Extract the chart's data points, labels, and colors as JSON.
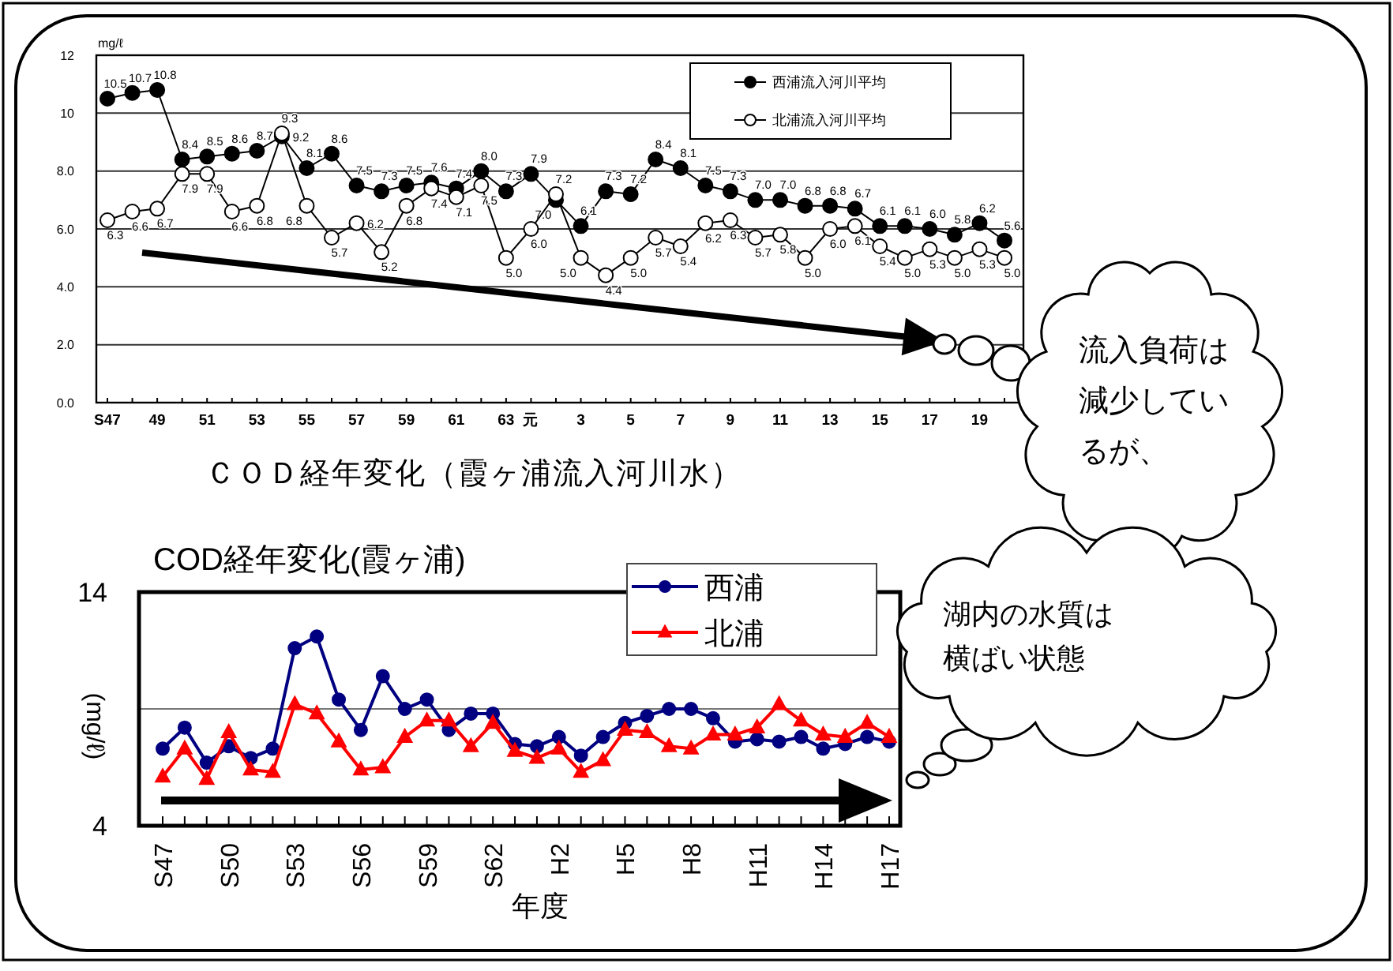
{
  "chart_data": [
    {
      "type": "line",
      "title": "ＣＯＤ経年変化（霞ヶ浦流入河川水）",
      "ylabel": "mg/ℓ",
      "categories": [
        "S47",
        null,
        "49",
        null,
        "51",
        null,
        "53",
        null,
        "55",
        null,
        "57",
        null,
        "59",
        null,
        "61",
        null,
        "63",
        "元",
        null,
        "3",
        null,
        "5",
        null,
        "7",
        null,
        "9",
        null,
        "11",
        null,
        "13",
        null,
        "15",
        null,
        "17",
        null,
        "19",
        null
      ],
      "series": [
        {
          "name": "西浦流入河川平均",
          "color": "#000000",
          "marker": "circle",
          "values": [
            10.5,
            10.7,
            10.8,
            8.4,
            8.5,
            8.6,
            8.7,
            9.2,
            8.1,
            8.6,
            7.5,
            7.3,
            7.5,
            7.6,
            7.4,
            8.0,
            7.3,
            7.9,
            7.0,
            6.1,
            7.3,
            7.2,
            8.4,
            8.1,
            7.5,
            7.3,
            7.0,
            7.0,
            6.8,
            6.8,
            6.7,
            6.1,
            6.1,
            6.0,
            5.8,
            6.2,
            5.6
          ],
          "value_labels": [
            "10.5",
            "10.7",
            "10.8",
            "8.4",
            "8.5",
            "8.6",
            "8.7",
            "9.2",
            "8.1",
            "8.6",
            "7.5",
            "7.3",
            "7.5",
            "7.6",
            "7.4",
            "8.0",
            "7.3",
            "7.9",
            "7.0",
            "6.1",
            "7.3",
            "7.2",
            "8.4",
            "8.1",
            "7.5",
            "7.3",
            "7.0",
            "7.0",
            "6.8",
            "6.8",
            "6.7",
            "6.1",
            "6.1",
            "6.0",
            "5.8",
            "6.2",
            "5.6"
          ]
        },
        {
          "name": "北浦流入河川平均",
          "color": "#000000",
          "marker": "circle",
          "values": [
            6.3,
            6.6,
            6.7,
            7.9,
            7.9,
            6.6,
            6.8,
            9.3,
            6.8,
            5.7,
            6.2,
            5.2,
            6.8,
            7.4,
            7.1,
            7.5,
            5.0,
            6.0,
            7.2,
            5.0,
            4.4,
            5.0,
            5.7,
            5.4,
            6.2,
            6.3,
            5.7,
            5.8,
            5.0,
            6.0,
            6.1,
            5.4,
            5.0,
            5.3,
            5.0,
            5.3,
            5.0
          ],
          "value_labels": [
            "6.3",
            "6.6",
            "6.7",
            "7.9",
            "7.9",
            "6.6",
            "6.8",
            "9.3",
            "6.8",
            "5.7",
            "6.2",
            "5.2",
            "6.8",
            "7.4",
            "7.1",
            "7.5",
            "5.0",
            "6.0",
            "7.2",
            "5.0",
            "4.4",
            "5.0",
            "5.7",
            "5.4",
            "6.2",
            "6.3",
            "5.7",
            "5.8",
            "5.0",
            "6.0",
            "6.1",
            "5.4",
            "5.0",
            "5.3",
            "5.0",
            "5.3",
            "5.0"
          ]
        }
      ],
      "ylim": [
        0,
        12
      ],
      "yticks": [
        {
          "value": 0,
          "label": "0.0"
        },
        {
          "value": 2,
          "label": "2.0"
        },
        {
          "value": 4,
          "label": "4.0"
        },
        {
          "value": 6,
          "label": "6.0"
        },
        {
          "value": 8,
          "label": "8.0"
        },
        10,
        12
      ],
      "grid": "y",
      "legend": "top right",
      "annotations": [
        "流入負荷は減少しているが、"
      ]
    },
    {
      "type": "line",
      "title": "COD経年変化(霞ヶ浦)",
      "xlabel": "年度",
      "ylabel": "(mg/ℓ)",
      "categories": [
        "S47",
        null,
        null,
        "S50",
        null,
        null,
        "S53",
        null,
        null,
        "S56",
        null,
        null,
        "S59",
        null,
        null,
        "S62",
        null,
        null,
        "H2",
        null,
        null,
        "H5",
        null,
        null,
        "H8",
        null,
        null,
        "H11",
        null,
        null,
        "H14",
        null,
        null,
        "H17"
      ],
      "series": [
        {
          "name": "西浦",
          "color": "#000080",
          "marker": "circle",
          "values": [
            7.3,
            8.2,
            6.7,
            7.4,
            6.9,
            7.3,
            11.6,
            12.1,
            9.4,
            8.1,
            10.4,
            9.0,
            9.4,
            8.1,
            8.8,
            8.8,
            7.5,
            7.4,
            7.8,
            7.0,
            7.8,
            8.4,
            8.7,
            9.0,
            9.0,
            8.6,
            7.6,
            7.7,
            7.6,
            7.8,
            7.3,
            7.5,
            7.8,
            7.6
          ]
        },
        {
          "name": "北浦",
          "color": "#ff0000",
          "marker": "triangle",
          "values": [
            6.1,
            7.3,
            6.0,
            8.0,
            6.4,
            6.3,
            9.2,
            8.8,
            7.6,
            6.4,
            6.5,
            7.8,
            8.5,
            8.5,
            7.4,
            8.4,
            7.2,
            6.9,
            7.3,
            6.3,
            6.8,
            8.1,
            8.0,
            7.4,
            7.3,
            7.9,
            7.9,
            8.2,
            9.2,
            8.5,
            7.9,
            7.8,
            8.4,
            7.8
          ]
        }
      ],
      "ylim": [
        4,
        14
      ],
      "yticks": [
        4,
        {
          "value": 9,
          "label": null
        },
        14
      ],
      "grid": "y",
      "legend": "top right",
      "annotations": [
        "湖内の水質は横ばい状態"
      ]
    }
  ]
}
